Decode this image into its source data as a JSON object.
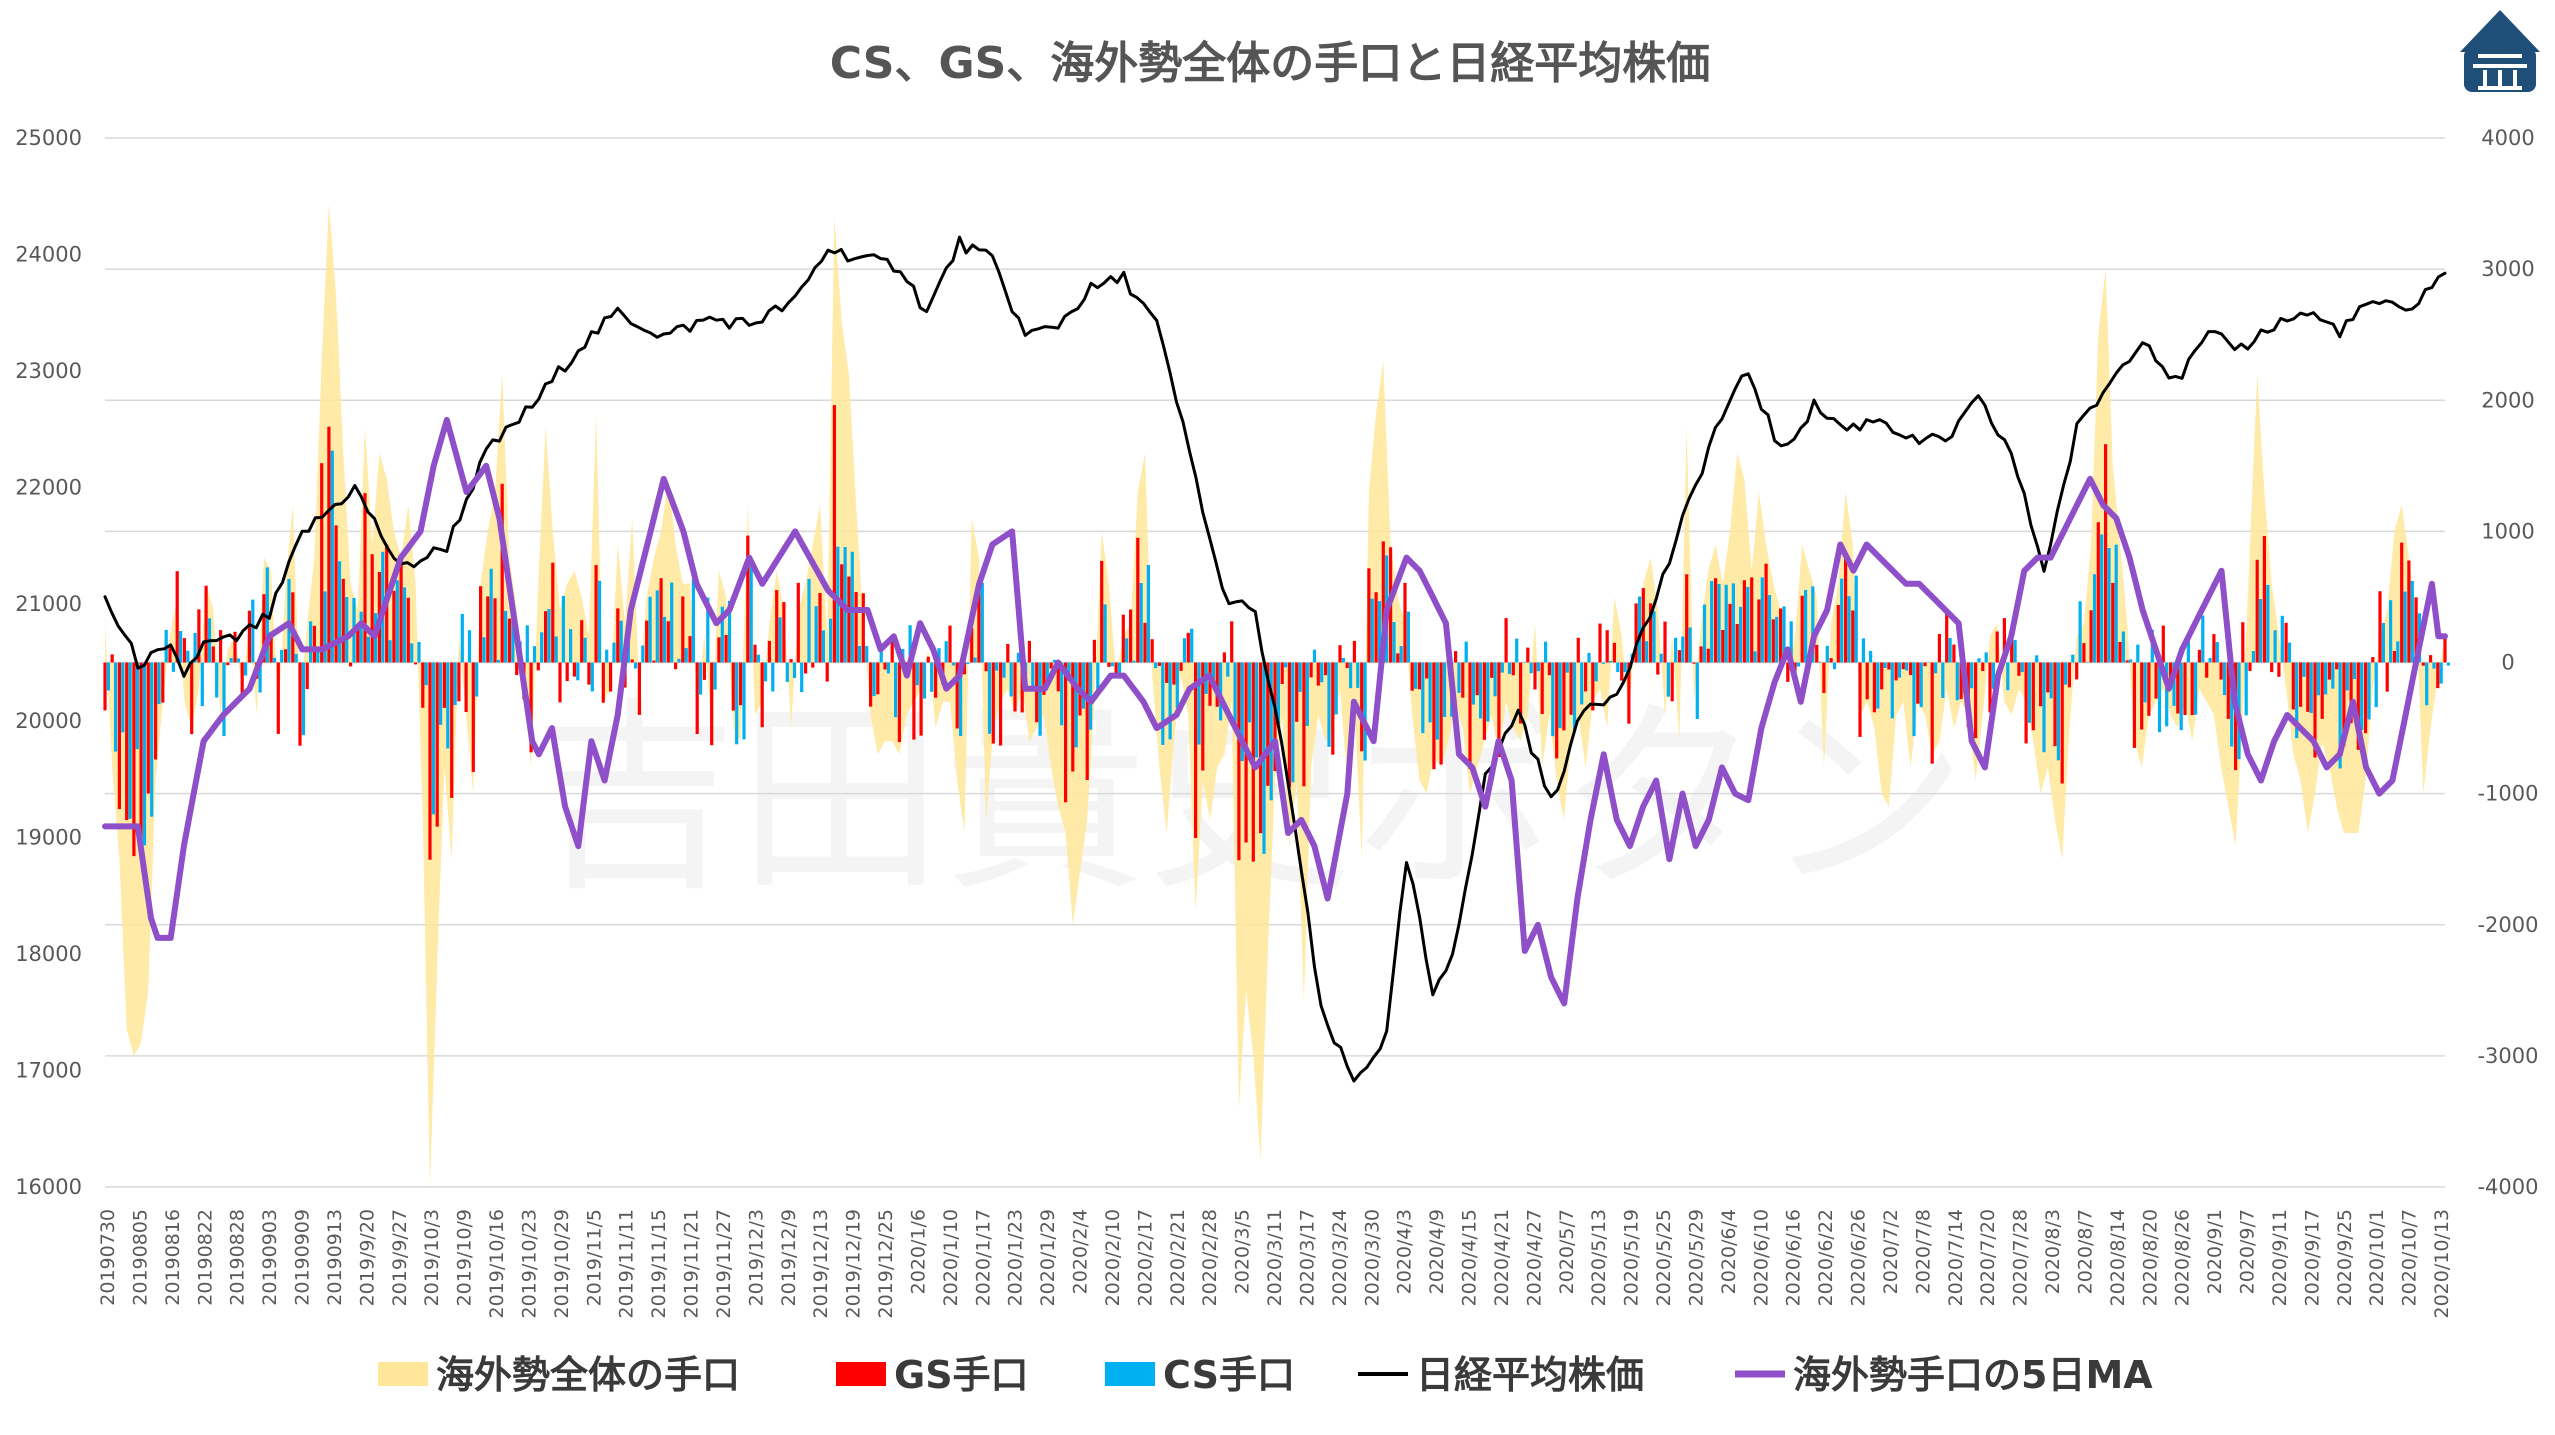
{
  "chart_data": {
    "type": "line",
    "title": "CS、GS、海外勢全体の手口と日経平均株価",
    "watermark": "吉田貴史ボタン",
    "ylabel_left": "",
    "ylabel_right": "",
    "ylim_left": [
      16000,
      25000
    ],
    "ylim_right": [
      -4000,
      4000
    ],
    "yticks_left": [
      "25000",
      "24000",
      "23000",
      "22000",
      "21000",
      "20000",
      "19000",
      "18000",
      "17000",
      "16000"
    ],
    "yticks_right": [
      "4000",
      "3000",
      "2000",
      "1000",
      "0",
      "-1000",
      "-2000",
      "-3000",
      "-4000"
    ],
    "grid": true,
    "legend_position": "bottom",
    "x_tick_labels": [
      "20190730",
      "20190805",
      "20190816",
      "20190822",
      "20190828",
      "20190903",
      "20190909",
      "20190913",
      "2019/9/20",
      "2019/9/27",
      "2019/10/3",
      "2019/10/9",
      "2019/10/16",
      "2019/10/23",
      "2019/10/29",
      "2019/11/5",
      "2019/11/11",
      "2019/11/15",
      "2019/11/21",
      "2019/11/27",
      "2019/12/3",
      "2019/12/9",
      "2019/12/13",
      "2019/12/19",
      "2019/12/25",
      "2020/1/6",
      "2020/1/10",
      "2020/1/17",
      "2020/1/23",
      "2020/1/29",
      "2020/2/4",
      "2020/2/10",
      "2020/2/17",
      "2020/2/21",
      "2020/2/28",
      "2020/3/5",
      "2020/3/11",
      "2020/3/17",
      "2020/3/24",
      "2020/3/30",
      "2020/4/3",
      "2020/4/9",
      "2020/4/15",
      "2020/4/21",
      "2020/4/27",
      "2020/5/7",
      "2020/5/13",
      "2020/5/19",
      "2020/5/25",
      "2020/5/29",
      "2020/6/4",
      "2020/6/10",
      "2020/6/16",
      "2020/6/22",
      "2020/6/26",
      "2020/7/2",
      "2020/7/8",
      "2020/7/14",
      "2020/7/20",
      "2020/7/28",
      "2020/8/3",
      "2020/8/7",
      "2020/8/14",
      "2020/8/20",
      "2020/8/26",
      "2020/9/1",
      "2020/9/7",
      "2020/9/11",
      "2020/9/17",
      "2020/9/25",
      "2020/10/1",
      "2020/10/7",
      "2020/10/13"
    ],
    "legend": [
      {
        "label": "海外勢全体の手口",
        "color": "#FFE699",
        "swatch": "rect"
      },
      {
        "label": "GS手口",
        "color": "#FF0000",
        "swatch": "rect"
      },
      {
        "label": "CS手口",
        "color": "#00B0F0",
        "swatch": "rect"
      },
      {
        "label": "日経平均株価",
        "color": "#000000",
        "swatch": "line"
      },
      {
        "label": "海外勢手口の5日MA",
        "color": "#8E4FC9",
        "swatch": "line"
      }
    ],
    "series": [
      {
        "name": "日経平均株価",
        "axis": "left",
        "color": "#000000",
        "x_anchor_index": [
          0,
          5,
          10,
          12,
          15,
          20,
          25,
          30,
          38,
          45,
          52,
          58,
          65,
          72,
          78,
          85,
          92,
          98,
          105,
          110,
          116,
          121,
          125,
          130,
          135,
          140,
          145,
          150,
          155,
          160,
          165,
          170,
          175,
          180,
          185,
          190,
          195,
          198,
          200,
          202,
          205,
          210,
          215,
          220,
          225,
          230,
          235,
          240,
          245,
          250,
          255,
          260,
          265,
          270,
          275,
          280,
          285,
          290,
          295,
          300,
          305,
          310,
          315,
          320,
          325,
          330,
          335,
          340,
          345,
          350,
          355
        ],
        "values": [
          21050,
          20500,
          20600,
          20400,
          20650,
          20700,
          20900,
          21600,
          22000,
          21300,
          21500,
          22300,
          22700,
          23200,
          23500,
          23300,
          23450,
          23400,
          23600,
          24050,
          23950,
          23900,
          23500,
          24100,
          23950,
          23300,
          23400,
          23700,
          23800,
          23400,
          22300,
          21100,
          20900,
          19500,
          17500,
          16900,
          17300,
          18800,
          18300,
          17600,
          18000,
          19500,
          20100,
          19300,
          20100,
          20250,
          20900,
          21700,
          22500,
          23000,
          22300,
          22700,
          22500,
          22600,
          22400,
          22400,
          22750,
          22300,
          21300,
          22500,
          22900,
          23300,
          22900,
          23300,
          23200,
          23400,
          23500,
          23350,
          23600,
          23500,
          23800
        ]
      },
      {
        "name": "海外勢手口の5日MA",
        "axis": "right",
        "color": "#8E4FC9",
        "x_anchor_index": [
          5,
          7,
          8,
          10,
          12,
          15,
          18,
          22,
          25,
          28,
          30,
          33,
          37,
          39,
          41,
          43,
          45,
          48,
          50,
          52,
          55,
          58,
          60,
          65,
          66,
          68,
          70,
          72,
          74,
          76,
          78,
          80,
          82,
          85,
          88,
          90,
          93,
          95,
          98,
          100,
          105,
          110,
          113,
          116,
          118,
          120,
          122,
          124,
          126,
          128,
          130,
          133,
          135,
          138,
          140,
          143,
          145,
          148,
          150,
          153,
          155,
          158,
          160,
          163,
          165,
          168,
          170,
          173,
          175,
          178,
          180,
          182,
          184,
          186,
          189,
          190,
          193,
          195,
          198,
          200,
          202,
          204,
          206,
          208,
          210,
          212,
          214,
          216,
          218,
          220,
          222,
          224,
          226,
          228,
          230,
          232,
          234,
          236,
          238,
          240,
          242,
          244,
          246,
          248,
          250,
          252,
          254,
          256,
          258,
          260,
          262,
          264,
          266,
          268,
          270,
          272,
          274,
          276,
          278,
          280,
          282,
          284,
          286,
          288,
          290,
          292,
          294,
          296,
          298,
          300,
          302,
          304,
          306,
          308,
          310,
          312,
          314,
          316,
          318,
          320,
          322,
          324,
          326,
          328,
          330,
          332,
          334,
          336,
          338,
          340,
          342,
          344,
          346,
          348,
          350,
          352,
          354,
          355
        ],
        "values": [
          -1250,
          -1950,
          -2100,
          -2100,
          -1400,
          -600,
          -400,
          -200,
          200,
          300,
          100,
          100,
          200,
          300,
          200,
          500,
          800,
          1000,
          1500,
          1850,
          1300,
          1500,
          1100,
          -600,
          -700,
          -500,
          -1100,
          -1400,
          -600,
          -900,
          -400,
          400,
          800,
          1400,
          1000,
          600,
          300,
          400,
          800,
          600,
          1000,
          550,
          400,
          400,
          100,
          200,
          -100,
          300,
          100,
          -200,
          -100,
          600,
          900,
          1000,
          -200,
          -200,
          0,
          -200,
          -300,
          -100,
          -100,
          -300,
          -500,
          -400,
          -200,
          -100,
          -300,
          -600,
          -800,
          -600,
          -1300,
          -1200,
          -1400,
          -1800,
          -1000,
          -300,
          -600,
          400,
          800,
          700,
          500,
          300,
          -700,
          -800,
          -1100,
          -600,
          -900,
          -2200,
          -2000,
          -2400,
          -2600,
          -1800,
          -1200,
          -700,
          -1200,
          -1400,
          -1100,
          -900,
          -1500,
          -1000,
          -1400,
          -1200,
          -800,
          -1000,
          -1050,
          -500,
          -150,
          100,
          -300,
          200,
          400,
          900,
          700,
          900,
          800,
          700,
          600,
          600,
          500,
          400,
          300,
          -600,
          -800,
          -100,
          200,
          700,
          800,
          800,
          1000,
          1200,
          1400,
          1200,
          1100,
          800,
          400,
          100,
          -200,
          100,
          300,
          500,
          700,
          -300,
          -700,
          -900,
          -600,
          -400,
          -500,
          -600,
          -800,
          -700,
          -300,
          -800,
          -1000,
          -900,
          -400,
          100,
          600,
          700,
          500,
          300,
          200
        ]
      }
    ],
    "bars": [
      {
        "name": "海外勢全体の手口",
        "axis": "right",
        "color": "#FFE699"
      },
      {
        "name": "GS手口",
        "axis": "right",
        "color": "#FF0000"
      },
      {
        "name": "CS手口",
        "axis": "right",
        "color": "#00B0F0"
      }
    ],
    "bar_series_values": {
      "foreign_total": [
        300,
        -800,
        -1500,
        -2800,
        -3000,
        -2900,
        -2500,
        -900,
        -300,
        200,
        500,
        -300,
        -500,
        -200,
        600,
        400,
        -400,
        100,
        200,
        -200,
        300,
        -400,
        800,
        700,
        -400,
        600,
        1200,
        -300,
        300,
        800,
        2300,
        3500,
        2800,
        1600,
        600,
        400,
        1800,
        900,
        1600,
        1400,
        1000,
        800,
        1200,
        600,
        -1200,
        -4000,
        -2300,
        -800,
        -1500,
        200,
        -400,
        -1000,
        600,
        1000,
        1300,
        2200,
        800,
        400,
        -200,
        -800,
        600,
        1800,
        1000,
        400,
        600,
        700,
        500,
        200,
        1900,
        -300,
        -200,
        900,
        300,
        1100,
        -200,
        500,
        800,
        1000,
        1400,
        900,
        600,
        600,
        -300,
        200,
        -500,
        700,
        500,
        -500,
        -600,
        1200,
        -400,
        -300,
        300,
        700,
        400,
        -500,
        400,
        600,
        900,
        1200,
        200,
        3400,
        2600,
        2200,
        1200,
        300,
        -400,
        -700,
        -600,
        -600,
        -700,
        -400,
        -300,
        -200,
        100,
        -500,
        -300,
        -300,
        -900,
        -1300,
        1100,
        800,
        -1200,
        -500,
        -300,
        -200,
        -400,
        -200,
        -600,
        -500,
        -400,
        -800,
        -1100,
        -1300,
        -2000,
        -1600,
        -1200,
        -300,
        1000,
        600,
        -100,
        200,
        300,
        1300,
        1600,
        -100,
        -800,
        -1300,
        -600,
        -100,
        -400,
        -1900,
        -900,
        -1200,
        -800,
        -700,
        -300,
        -3400,
        -2500,
        -3000,
        -3800,
        -2200,
        -900,
        -400,
        -1400,
        -900,
        -2600,
        -800,
        -400,
        -600,
        -500,
        -200,
        -900,
        -300,
        -1500,
        1300,
        1900,
        2300,
        900,
        500,
        300,
        -400,
        -900,
        -1000,
        -700,
        -800,
        -600,
        -300,
        -500,
        -1000,
        -800,
        -600,
        -400,
        -700,
        -300,
        -500,
        -600,
        -400,
        300,
        -800,
        -400,
        -900,
        -1200,
        -600,
        -400,
        -800,
        -300,
        -200,
        -500,
        500,
        200,
        -400,
        300,
        600,
        800,
        400,
        -400,
        200,
        -600,
        1800,
        -300,
        300,
        700,
        900,
        600,
        1000,
        1600,
        1400,
        700,
        1300,
        900,
        600,
        400,
        -100,
        200,
        900,
        700,
        500,
        -800,
        300,
        600,
        1300,
        900,
        -400,
        -300,
        -500,
        -1000,
        -1100,
        -400,
        -300,
        -800,
        -300,
        -400,
        -700,
        -600,
        -200,
        -500,
        -300,
        -400,
        -900,
        -400,
        200,
        300,
        -300,
        -400,
        -200,
        -300,
        -600,
        -1000,
        -800,
        -1200,
        -1500,
        -500,
        200,
        300,
        900,
        2500,
        3000,
        1500,
        900,
        300,
        -600,
        -800,
        -400,
        -300,
        -200,
        -400,
        -500,
        -300,
        -600,
        -200,
        -300,
        -400,
        -800,
        -1100,
        -1400,
        -400,
        900,
        2200,
        1300,
        600,
        200,
        -200,
        -700,
        -900,
        -1300,
        -1000,
        -600,
        -800,
        -1100,
        -1300,
        -1300,
        -1300,
        -900,
        -200,
        200,
        400,
        1000,
        1200,
        800,
        400,
        -1000,
        -500,
        -100,
        200
      ]
    }
  }
}
